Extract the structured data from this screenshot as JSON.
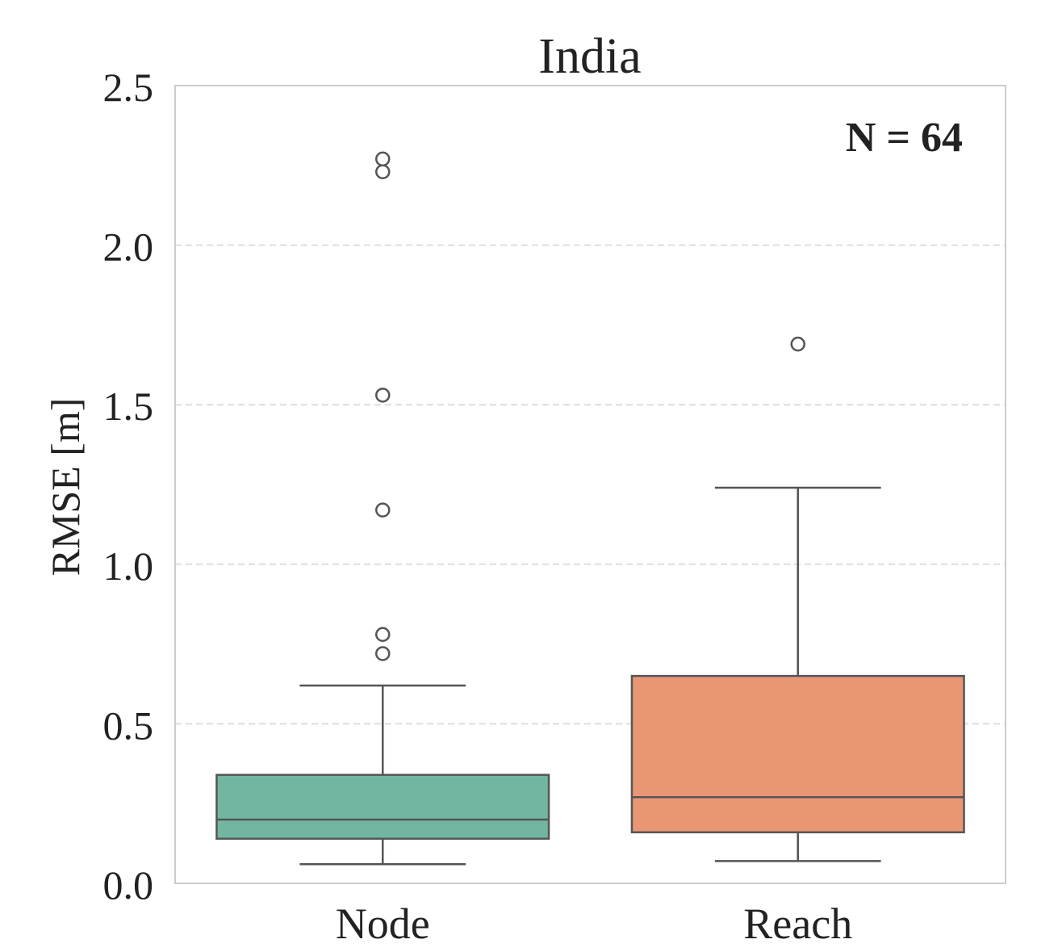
{
  "chart_data": {
    "type": "box",
    "title": "India",
    "xlabel": "",
    "ylabel": "RMSE [m]",
    "ylim": [
      0.0,
      2.5
    ],
    "yticks": [
      "0.0",
      "0.5",
      "1.0",
      "1.5",
      "2.0",
      "2.5"
    ],
    "grid": "horizontal dashed",
    "annotation": "N = 64",
    "annotation_position": "top-right",
    "categories": [
      "Node",
      "Reach"
    ],
    "series": [
      {
        "category": "Node",
        "color": "#72b6a1",
        "whisker_low": 0.06,
        "q1": 0.14,
        "median": 0.2,
        "q3": 0.34,
        "whisker_high": 0.62,
        "outliers": [
          0.72,
          0.78,
          1.17,
          1.53,
          2.23,
          2.27
        ]
      },
      {
        "category": "Reach",
        "color": "#e99675",
        "whisker_low": 0.07,
        "q1": 0.16,
        "median": 0.27,
        "q3": 0.65,
        "whisker_high": 1.24,
        "outliers": [
          1.69
        ]
      }
    ]
  }
}
